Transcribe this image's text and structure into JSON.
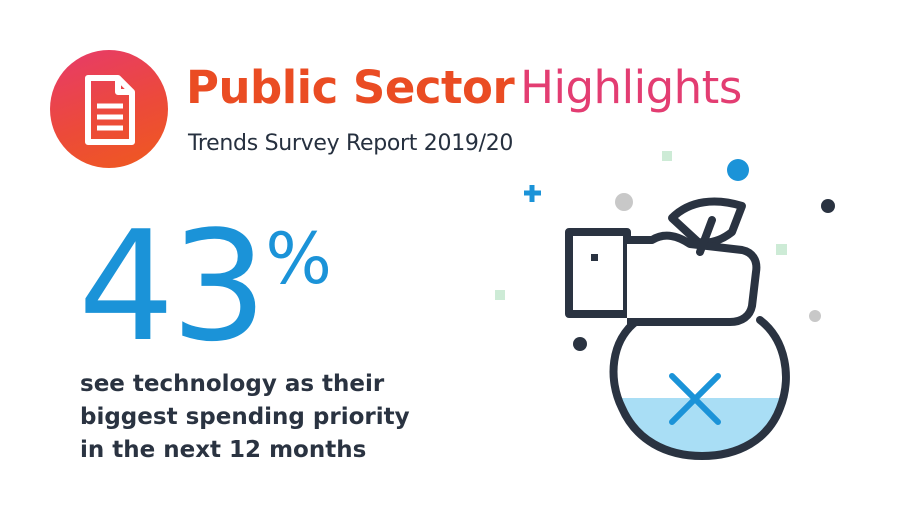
{
  "header": {
    "icon": "document-icon",
    "title_bold": "Public Sector",
    "title_light": "Highlights",
    "subtitle": "Trends Survey Report 2019/20"
  },
  "stat": {
    "value": "43",
    "unit": "%",
    "caption_lines": [
      "see technology as their",
      "biggest spending priority",
      "in the next 12 months"
    ]
  },
  "illustration": {
    "icon": "hand-holding-money-bag-icon",
    "mark": "x-mark-icon"
  },
  "colors": {
    "accent_orange": "#ea4c23",
    "accent_pink": "#e33d72",
    "stat_blue": "#1b93d8",
    "dark_text": "#2a3341",
    "fill_light_blue": "#a9def5"
  }
}
